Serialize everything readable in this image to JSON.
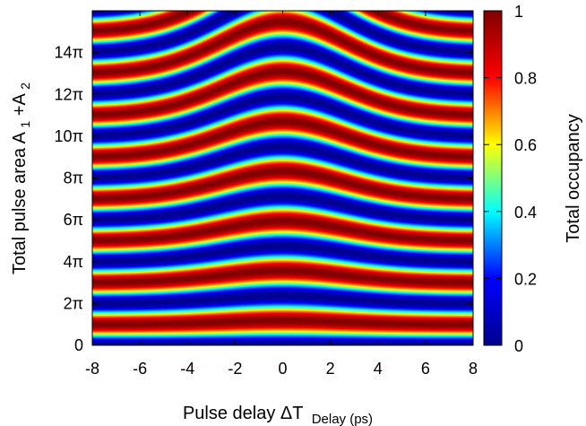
{
  "chart_data": {
    "type": "heatmap",
    "title": "",
    "xlabel": "Pulse delay ΔT",
    "xlabel_sub": "Delay (ps)",
    "ylabel": "Total pulse area A",
    "ylabel_sub1": "1",
    "ylabel_mid": "+A",
    "ylabel_sub2": "2",
    "x_range": [
      -8,
      8
    ],
    "y_range": [
      0,
      16
    ],
    "y_range_units": "pi",
    "x_ticks": [
      {
        "value": -8,
        "label": "-8"
      },
      {
        "value": -6,
        "label": "-6"
      },
      {
        "value": -4,
        "label": "-4"
      },
      {
        "value": -2,
        "label": "-2"
      },
      {
        "value": 0,
        "label": "0"
      },
      {
        "value": 2,
        "label": "2"
      },
      {
        "value": 4,
        "label": "4"
      },
      {
        "value": 6,
        "label": "6"
      },
      {
        "value": 8,
        "label": "8"
      }
    ],
    "y_ticks": [
      {
        "value": 0,
        "label": "0"
      },
      {
        "value": 2,
        "label": "2π"
      },
      {
        "value": 4,
        "label": "4π"
      },
      {
        "value": 6,
        "label": "6π"
      },
      {
        "value": 8,
        "label": "8π"
      },
      {
        "value": 10,
        "label": "10π"
      },
      {
        "value": 12,
        "label": "12π"
      },
      {
        "value": 14,
        "label": "14π"
      }
    ],
    "colorbar": {
      "label": "Total occupancy",
      "range": [
        0,
        1
      ],
      "ticks": [
        {
          "value": 0,
          "label": "0"
        },
        {
          "value": 0.2,
          "label": "0.2"
        },
        {
          "value": 0.4,
          "label": "0.4"
        },
        {
          "value": 0.6,
          "label": "0.6"
        },
        {
          "value": 0.8,
          "label": "0.8"
        },
        {
          "value": 1,
          "label": "1"
        }
      ],
      "colormap": [
        "#00008f",
        "#0000ff",
        "#00ffff",
        "#ffff00",
        "#ff0000",
        "#800000"
      ]
    },
    "z_model": {
      "description": "occupancy(x, A) = sin^2(phi/2); phi = A for |x| large, phi = A(1 - 0.16 exp(-(x/4)^2)) near zero delay",
      "large_delay_ridges_pi": [
        1,
        3,
        5,
        7,
        9,
        11,
        13,
        15
      ],
      "large_delay_minima_pi": [
        0,
        2,
        4,
        6,
        8,
        10,
        12,
        14,
        16
      ]
    }
  }
}
